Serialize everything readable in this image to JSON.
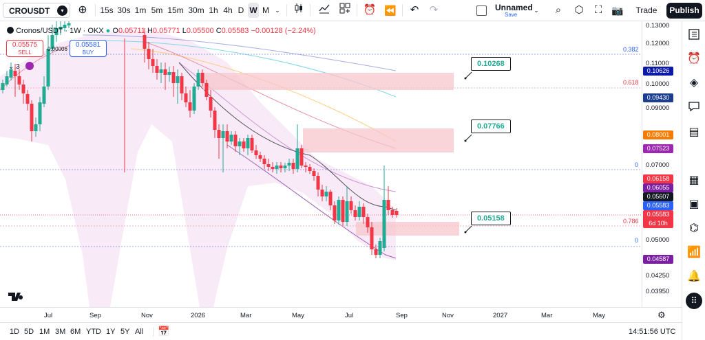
{
  "toolbar": {
    "symbol": "CROUSDT",
    "intervals": [
      "15s",
      "30s",
      "1m",
      "5m",
      "15m",
      "30m",
      "1h",
      "4h",
      "D",
      "W",
      "M"
    ],
    "active_interval": "W",
    "layout_name": "Unnamed",
    "layout_save": "Save",
    "trade_label": "Trade",
    "publish_label": "Publish"
  },
  "legend": {
    "title": "Cronos/USDT · 1W · OKX",
    "open_label": "O",
    "open": "0.05711",
    "high_label": "H",
    "high": "0.05771",
    "low_label": "L",
    "low": "0.05500",
    "close_label": "C",
    "close": "0.05583",
    "change": "−0.00128 (−2.24%)",
    "sell_price": "0.05575",
    "sell_label": "SELL",
    "buy_price": "0.05581",
    "buy_label": "BUY",
    "spread": "0.00006",
    "indicator_count": "3"
  },
  "price_axis": {
    "ticks": [
      "0.13000",
      "0.12000",
      "0.11000",
      "0.10000",
      "0.09000",
      "0.07000",
      "0.05000",
      "0.04250",
      "0.03950"
    ],
    "labels": [
      {
        "value": "0.10626",
        "color": "#0d1aa8"
      },
      {
        "value": "0.09430",
        "color": "#1d3e8f"
      },
      {
        "value": "0.08001",
        "color": "#f57c00"
      },
      {
        "value": "0.07523",
        "color": "#9c27b0"
      },
      {
        "value": "0.06158",
        "color": "#f23645"
      },
      {
        "value": "0.06055",
        "color": "#7b1fa2"
      },
      {
        "value": "0.05607",
        "color": "#131722"
      },
      {
        "value": "0.05583",
        "color": "#2962ff"
      },
      {
        "value": "0.05583",
        "color": "#f23645"
      },
      {
        "value": "0.04587",
        "color": "#7b1fa2"
      }
    ],
    "countdown": "6d 10h"
  },
  "fib_levels": [
    {
      "ratio": "0.382",
      "color": "#2962ff"
    },
    {
      "ratio": "0.618",
      "color": "#f23645"
    },
    {
      "ratio": "0",
      "color": "#2962ff"
    },
    {
      "ratio": "0.786",
      "color": "#f23645"
    },
    {
      "ratio": "0",
      "color": "#2962ff"
    }
  ],
  "callouts": [
    "0.10268",
    "0.07766",
    "0.05158"
  ],
  "time_axis": [
    "Jul",
    "Sep",
    "Nov",
    "2026",
    "Mar",
    "May",
    "Jul",
    "Sep",
    "Nov",
    "2027",
    "Mar",
    "May"
  ],
  "bottombar": {
    "ranges": [
      "1D",
      "5D",
      "1M",
      "3M",
      "6M",
      "YTD",
      "1Y",
      "5Y",
      "All"
    ],
    "clock": "14:51:56 UTC"
  },
  "colors": {
    "up": "#22ab94",
    "down": "#f23645",
    "zone": "#f7c5cb",
    "cloud": "#f3d9ee"
  }
}
